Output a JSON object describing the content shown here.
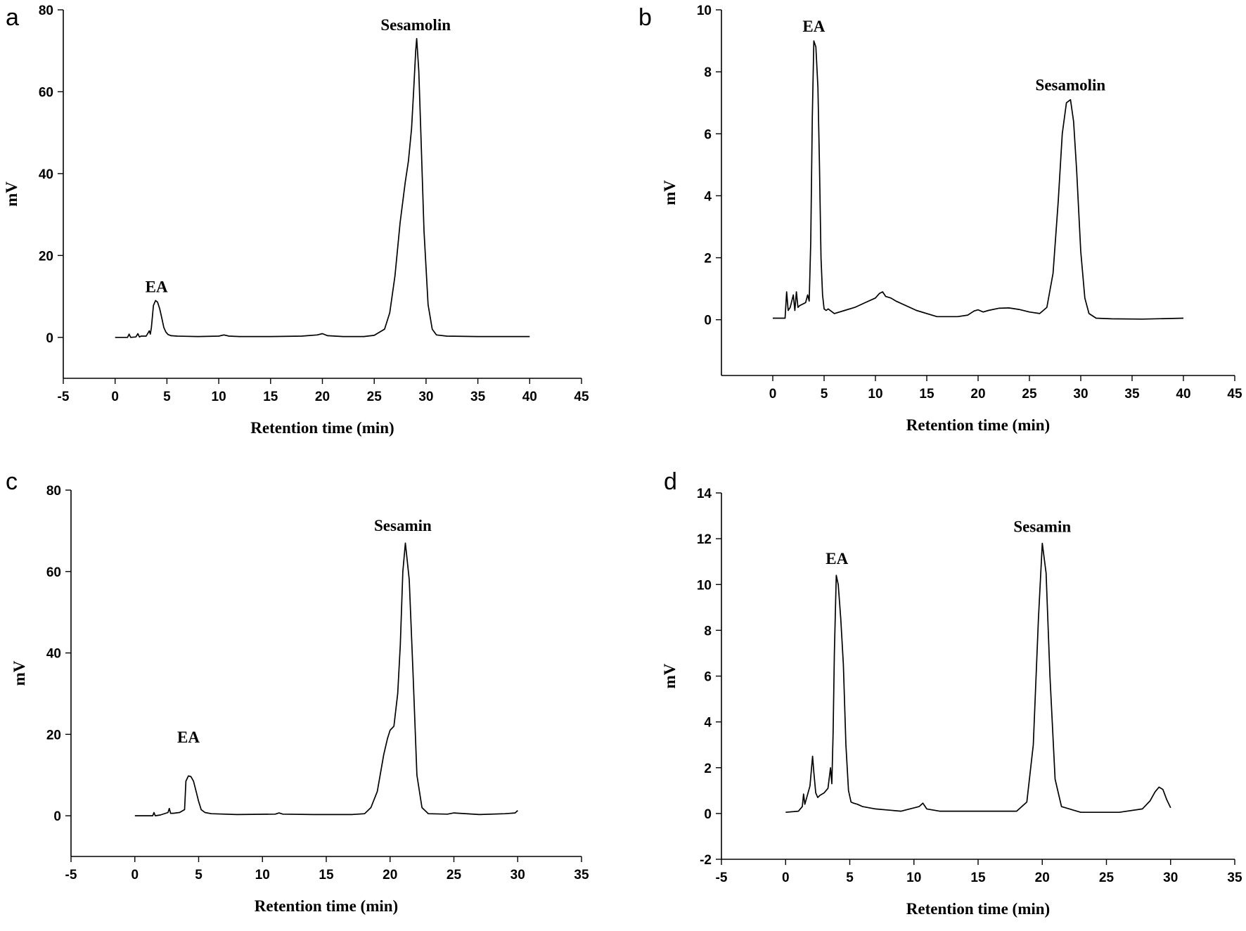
{
  "chart_data": [
    {
      "panel": "a",
      "type": "line",
      "xlabel": "Retention time (min)",
      "ylabel": "mV",
      "xlim": [
        -5,
        45
      ],
      "ylim": [
        -10,
        80
      ],
      "xticks": [
        -5,
        0,
        5,
        10,
        15,
        20,
        25,
        30,
        35,
        40,
        45
      ],
      "yticks": [
        0,
        20,
        40,
        60,
        80
      ],
      "annotations": [
        {
          "text": "EA",
          "x": 4.0,
          "y": 11
        },
        {
          "text": "Sesamolin",
          "x": 29.0,
          "y": 75
        }
      ],
      "series": [
        {
          "x": [
            0,
            1.2,
            1.35,
            1.5,
            2.0,
            2.2,
            2.35,
            2.5,
            3.0,
            3.3,
            3.4,
            3.5,
            3.7,
            3.9,
            4.1,
            4.3,
            4.5,
            4.7,
            4.9,
            5.1,
            5.4,
            6,
            8,
            10,
            10.5,
            11,
            12,
            15,
            18,
            19.5,
            20,
            20.5,
            22,
            24,
            25,
            26,
            26.5,
            27,
            27.5,
            28,
            28.3,
            28.6,
            28.8,
            29.0,
            29.1,
            29.3,
            29.5,
            29.8,
            30.2,
            30.6,
            31,
            32,
            35,
            40
          ],
          "y": [
            0,
            0,
            0.8,
            0,
            0.1,
            0.9,
            0.1,
            0.3,
            0.3,
            1.6,
            0.8,
            2.4,
            7.8,
            9.0,
            8.6,
            7.0,
            4.8,
            2.4,
            1.3,
            0.7,
            0.4,
            0.3,
            0.2,
            0.3,
            0.6,
            0.3,
            0.2,
            0.2,
            0.3,
            0.6,
            0.9,
            0.4,
            0.2,
            0.2,
            0.5,
            2.0,
            6.0,
            15.0,
            28.0,
            38.0,
            43.0,
            51.0,
            60.0,
            70.0,
            73.0,
            65.0,
            50.0,
            26.0,
            8.0,
            2.0,
            0.6,
            0.3,
            0.2,
            0.2
          ]
        }
      ]
    },
    {
      "panel": "b",
      "type": "line",
      "xlabel": "Retention time (min)",
      "ylabel": "mV",
      "xlim": [
        -5,
        45
      ],
      "ylim": [
        -1.8,
        10
      ],
      "xticks": [
        0,
        5,
        10,
        15,
        20,
        25,
        30,
        35,
        40,
        45
      ],
      "yticks": [
        0,
        2,
        4,
        6,
        8,
        10
      ],
      "annotations": [
        {
          "text": "EA",
          "x": 4.0,
          "y": 9.3
        },
        {
          "text": "Sesamolin",
          "x": 29.0,
          "y": 7.4
        }
      ],
      "series": [
        {
          "x": [
            0,
            1.2,
            1.35,
            1.5,
            1.7,
            2.0,
            2.15,
            2.3,
            2.45,
            2.6,
            2.9,
            3.2,
            3.4,
            3.55,
            3.7,
            3.85,
            4.0,
            4.2,
            4.4,
            4.55,
            4.7,
            4.85,
            5.0,
            5.2,
            5.4,
            6,
            7,
            8,
            9,
            10,
            10.4,
            10.7,
            11,
            11.5,
            12,
            14,
            16,
            18,
            19,
            19.6,
            20,
            20.5,
            21,
            22,
            23,
            24,
            25,
            26,
            26.7,
            27.3,
            27.8,
            28.2,
            28.6,
            29.0,
            29.3,
            29.6,
            30.0,
            30.4,
            30.8,
            31.5,
            33,
            36,
            40
          ],
          "y": [
            0.05,
            0.05,
            0.9,
            0.3,
            0.4,
            0.8,
            0.3,
            0.9,
            0.4,
            0.45,
            0.5,
            0.55,
            0.8,
            0.6,
            2.5,
            6.5,
            9.0,
            8.8,
            7.5,
            5.0,
            2.0,
            0.8,
            0.35,
            0.3,
            0.35,
            0.2,
            0.3,
            0.4,
            0.55,
            0.7,
            0.85,
            0.9,
            0.75,
            0.7,
            0.6,
            0.3,
            0.1,
            0.1,
            0.15,
            0.28,
            0.32,
            0.25,
            0.3,
            0.37,
            0.38,
            0.33,
            0.25,
            0.2,
            0.4,
            1.5,
            3.8,
            6.0,
            7.0,
            7.1,
            6.4,
            4.8,
            2.2,
            0.7,
            0.2,
            0.05,
            0.03,
            0.02,
            0.05
          ]
        }
      ]
    },
    {
      "panel": "c",
      "type": "line",
      "xlabel": "Retention time (min)",
      "ylabel": "mV",
      "xlim": [
        -5,
        35
      ],
      "ylim": [
        -10,
        80
      ],
      "xticks": [
        -5,
        0,
        5,
        10,
        15,
        20,
        25,
        30,
        35
      ],
      "yticks": [
        0,
        20,
        40,
        60,
        80
      ],
      "annotations": [
        {
          "text": "EA",
          "x": 4.2,
          "y": 18
        },
        {
          "text": "Sesamin",
          "x": 21.0,
          "y": 70
        }
      ],
      "series": [
        {
          "x": [
            0,
            1.4,
            1.5,
            1.6,
            2.0,
            2.6,
            2.7,
            2.8,
            3.0,
            3.5,
            3.9,
            4.0,
            4.2,
            4.4,
            4.6,
            4.8,
            5.0,
            5.2,
            5.5,
            6,
            8,
            11,
            11.3,
            11.6,
            14,
            16,
            17,
            18,
            18.5,
            19,
            19.5,
            19.8,
            20.0,
            20.3,
            20.6,
            20.8,
            21.0,
            21.2,
            21.5,
            21.8,
            22.1,
            22.5,
            23,
            24.5,
            25,
            27,
            29,
            29.8,
            30
          ],
          "y": [
            0,
            0,
            0.8,
            0,
            0.2,
            0.8,
            1.8,
            0.6,
            0.6,
            0.8,
            1.5,
            8.5,
            9.8,
            9.6,
            8.5,
            6.0,
            3.5,
            1.5,
            0.8,
            0.5,
            0.3,
            0.4,
            0.7,
            0.4,
            0.3,
            0.3,
            0.3,
            0.5,
            2.0,
            6.0,
            15.0,
            19.0,
            21.0,
            22.0,
            30.0,
            42.0,
            60.0,
            67.0,
            58.0,
            35.0,
            10.0,
            2.0,
            0.5,
            0.4,
            0.7,
            0.3,
            0.5,
            0.7,
            1.3
          ]
        }
      ]
    },
    {
      "panel": "d",
      "type": "line",
      "xlabel": "Retention time (min)",
      "ylabel": "mV",
      "xlim": [
        -5,
        35
      ],
      "ylim": [
        -2,
        14
      ],
      "xticks": [
        -5,
        0,
        5,
        10,
        15,
        20,
        25,
        30,
        35
      ],
      "yticks": [
        -2,
        0,
        2,
        4,
        6,
        8,
        10,
        12,
        14
      ],
      "annotations": [
        {
          "text": "EA",
          "x": 4.0,
          "y": 10.9
        },
        {
          "text": "Sesamin",
          "x": 20.0,
          "y": 12.3
        }
      ],
      "series": [
        {
          "x": [
            0,
            1.0,
            1.3,
            1.4,
            1.5,
            1.9,
            2.1,
            2.2,
            2.35,
            2.5,
            2.7,
            3.0,
            3.3,
            3.5,
            3.6,
            3.7,
            3.8,
            3.95,
            4.1,
            4.3,
            4.5,
            4.7,
            4.9,
            5.1,
            5.3,
            5.6,
            6,
            7,
            9,
            10.4,
            10.7,
            11.0,
            12,
            15,
            18,
            18.8,
            19.3,
            19.7,
            20.0,
            20.3,
            20.6,
            21.0,
            21.5,
            23,
            26,
            27.8,
            28.4,
            28.8,
            29.1,
            29.4,
            29.7,
            30
          ],
          "y": [
            0.05,
            0.1,
            0.3,
            0.85,
            0.4,
            1.2,
            2.5,
            1.8,
            0.9,
            0.7,
            0.8,
            0.9,
            1.1,
            2.0,
            1.3,
            3.5,
            7.0,
            10.4,
            10.0,
            8.5,
            6.5,
            3.0,
            1.0,
            0.5,
            0.45,
            0.4,
            0.3,
            0.2,
            0.1,
            0.3,
            0.45,
            0.2,
            0.1,
            0.1,
            0.1,
            0.5,
            3.0,
            8.5,
            11.8,
            10.5,
            6.0,
            1.5,
            0.3,
            0.05,
            0.05,
            0.2,
            0.55,
            0.95,
            1.15,
            1.05,
            0.6,
            0.25
          ]
        }
      ]
    }
  ]
}
